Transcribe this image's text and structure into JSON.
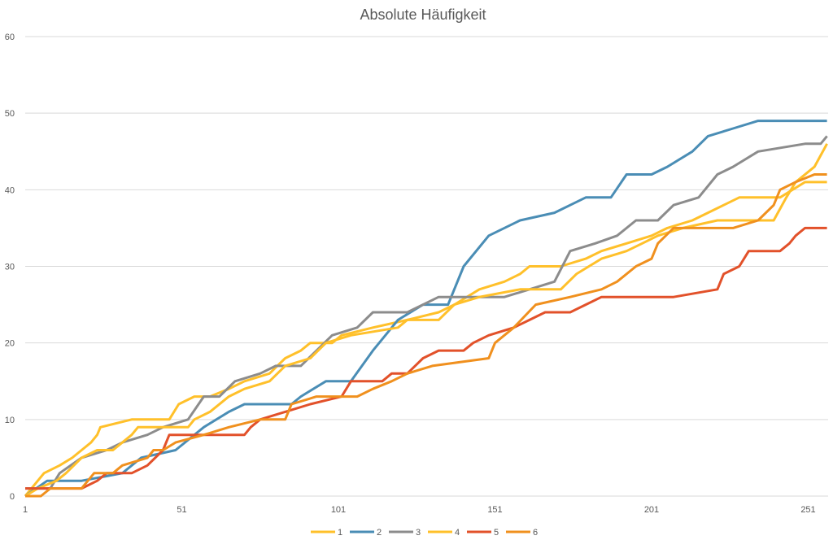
{
  "chart_data": {
    "type": "line",
    "title": "Absolute Häufigkeit",
    "xlabel": "",
    "ylabel": "",
    "xlim": [
      1,
      258
    ],
    "ylim": [
      0,
      60
    ],
    "x_ticks": [
      1,
      51,
      101,
      151,
      201,
      251
    ],
    "y_ticks": [
      0,
      10,
      20,
      30,
      40,
      50,
      60
    ],
    "grid": "horizontal",
    "legend_position": "bottom",
    "series": [
      {
        "name": "1",
        "color": "#FFC02A",
        "x": [
          1,
          5,
          7,
          12,
          16,
          19,
          22,
          24,
          25,
          35,
          47,
          50,
          55,
          60,
          66,
          71,
          79,
          84,
          89,
          92,
          99,
          102,
          112,
          123,
          133,
          138,
          146,
          154,
          159,
          162,
          172,
          180,
          185,
          193,
          201,
          206,
          214,
          219,
          224,
          229,
          242,
          250,
          257
        ],
        "y": [
          0,
          2,
          3,
          4,
          5,
          6,
          7,
          8,
          9,
          10,
          10,
          12,
          13,
          13,
          14,
          15,
          16,
          18,
          19,
          20,
          20,
          21,
          22,
          23,
          24,
          25,
          27,
          28,
          29,
          30,
          30,
          31,
          32,
          33,
          34,
          35,
          36,
          37,
          38,
          39,
          39,
          41,
          41
        ]
      },
      {
        "name": "2",
        "color": "#4A8DB5",
        "x": [
          1,
          8,
          19,
          32,
          38,
          49,
          58,
          66,
          71,
          86,
          89,
          97,
          105,
          112,
          120,
          128,
          136,
          141,
          149,
          159,
          170,
          175,
          180,
          188,
          193,
          201,
          206,
          214,
          219,
          227,
          235,
          257
        ],
        "y": [
          0,
          2,
          2,
          3,
          5,
          6,
          9,
          11,
          12,
          12,
          13,
          15,
          15,
          19,
          23,
          25,
          25,
          30,
          34,
          36,
          37,
          38,
          39,
          39,
          42,
          42,
          43,
          45,
          47,
          48,
          49,
          49
        ]
      },
      {
        "name": "3",
        "color": "#8C8C8C",
        "x": [
          1,
          9,
          12,
          19,
          27,
          32,
          40,
          45,
          53,
          58,
          63,
          68,
          76,
          81,
          89,
          94,
          99,
          107,
          112,
          123,
          128,
          133,
          154,
          162,
          170,
          175,
          183,
          190,
          196,
          203,
          208,
          216,
          222,
          227,
          235,
          250,
          255,
          257
        ],
        "y": [
          1,
          1,
          3,
          5,
          6,
          7,
          8,
          9,
          10,
          13,
          13,
          15,
          16,
          17,
          17,
          19,
          21,
          22,
          24,
          24,
          25,
          26,
          26,
          27,
          28,
          32,
          33,
          34,
          36,
          36,
          38,
          39,
          42,
          43,
          45,
          46,
          46,
          47
        ]
      },
      {
        "name": "4",
        "color": "#FFC02A",
        "x": [
          1,
          5,
          11,
          14,
          19,
          24,
          29,
          32,
          35,
          37,
          53,
          55,
          60,
          66,
          71,
          79,
          84,
          92,
          97,
          105,
          120,
          123,
          133,
          138,
          146,
          159,
          172,
          177,
          185,
          193,
          198,
          203,
          211,
          222,
          240,
          244,
          247,
          253,
          257
        ],
        "y": [
          0,
          1,
          2,
          3,
          5,
          6,
          6,
          7,
          8,
          9,
          9,
          10,
          11,
          13,
          14,
          15,
          17,
          18,
          20,
          21,
          22,
          23,
          23,
          25,
          26,
          27,
          27,
          29,
          31,
          32,
          33,
          34,
          35,
          36,
          36,
          39,
          41,
          43,
          46
        ]
      },
      {
        "name": "5",
        "color": "#E2512A",
        "x": [
          1,
          19,
          24,
          27,
          35,
          40,
          45,
          47,
          71,
          73,
          76,
          84,
          92,
          102,
          105,
          115,
          118,
          123,
          128,
          133,
          141,
          144,
          149,
          157,
          162,
          167,
          175,
          180,
          185,
          208,
          222,
          224,
          229,
          232,
          242,
          245,
          247,
          250,
          257
        ],
        "y": [
          1,
          1,
          2,
          3,
          3,
          4,
          6,
          8,
          8,
          9,
          10,
          11,
          12,
          13,
          15,
          15,
          16,
          16,
          18,
          19,
          19,
          20,
          21,
          22,
          23,
          24,
          24,
          25,
          26,
          26,
          27,
          29,
          30,
          32,
          32,
          33,
          34,
          35,
          35
        ]
      },
      {
        "name": "6",
        "color": "#F0901E",
        "x": [
          1,
          6,
          9,
          19,
          23,
          29,
          32,
          40,
          42,
          45,
          49,
          58,
          66,
          76,
          84,
          86,
          94,
          107,
          112,
          118,
          123,
          131,
          149,
          151,
          157,
          164,
          175,
          185,
          190,
          196,
          201,
          203,
          208,
          227,
          235,
          240,
          242,
          247,
          253,
          257
        ],
        "y": [
          0,
          0,
          1,
          1,
          3,
          3,
          4,
          5,
          6,
          6,
          7,
          8,
          9,
          10,
          10,
          12,
          13,
          13,
          14,
          15,
          16,
          17,
          18,
          20,
          22,
          25,
          26,
          27,
          28,
          30,
          31,
          33,
          35,
          35,
          36,
          38,
          40,
          41,
          42,
          42
        ]
      }
    ]
  }
}
